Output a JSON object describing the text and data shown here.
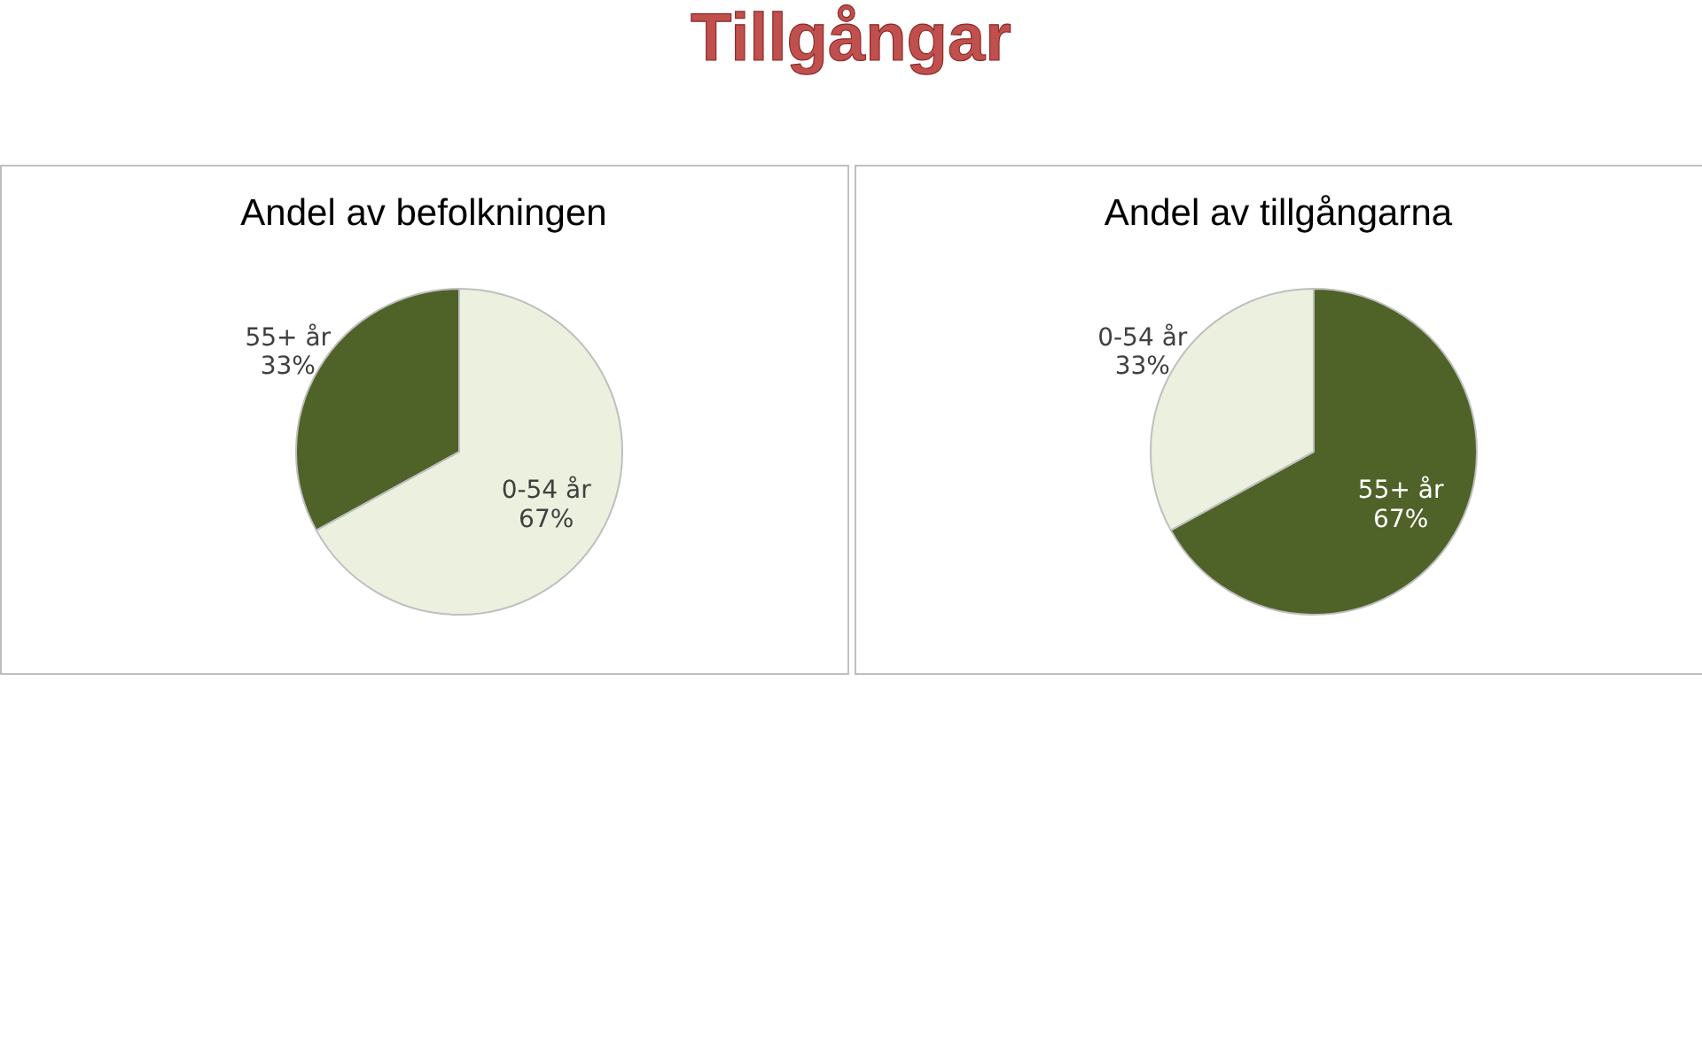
{
  "chart_data": [
    {
      "type": "pie",
      "title": "Andel av befolkningen",
      "annotations": [
        "Tillgångar"
      ],
      "categories": [
        "0-54 år",
        "55+ år"
      ],
      "values": [
        67,
        33
      ],
      "colors": [
        "#ebf1de",
        "#4f6228"
      ],
      "value_labels": [
        "67%",
        "33%"
      ]
    },
    {
      "type": "pie",
      "title": "Andel av tillgångarna",
      "categories": [
        "55+ år",
        "0-54 år"
      ],
      "values": [
        67,
        33
      ],
      "colors": [
        "#4f6228",
        "#ebf1de"
      ],
      "value_labels": [
        "67%",
        "33%"
      ]
    }
  ]
}
